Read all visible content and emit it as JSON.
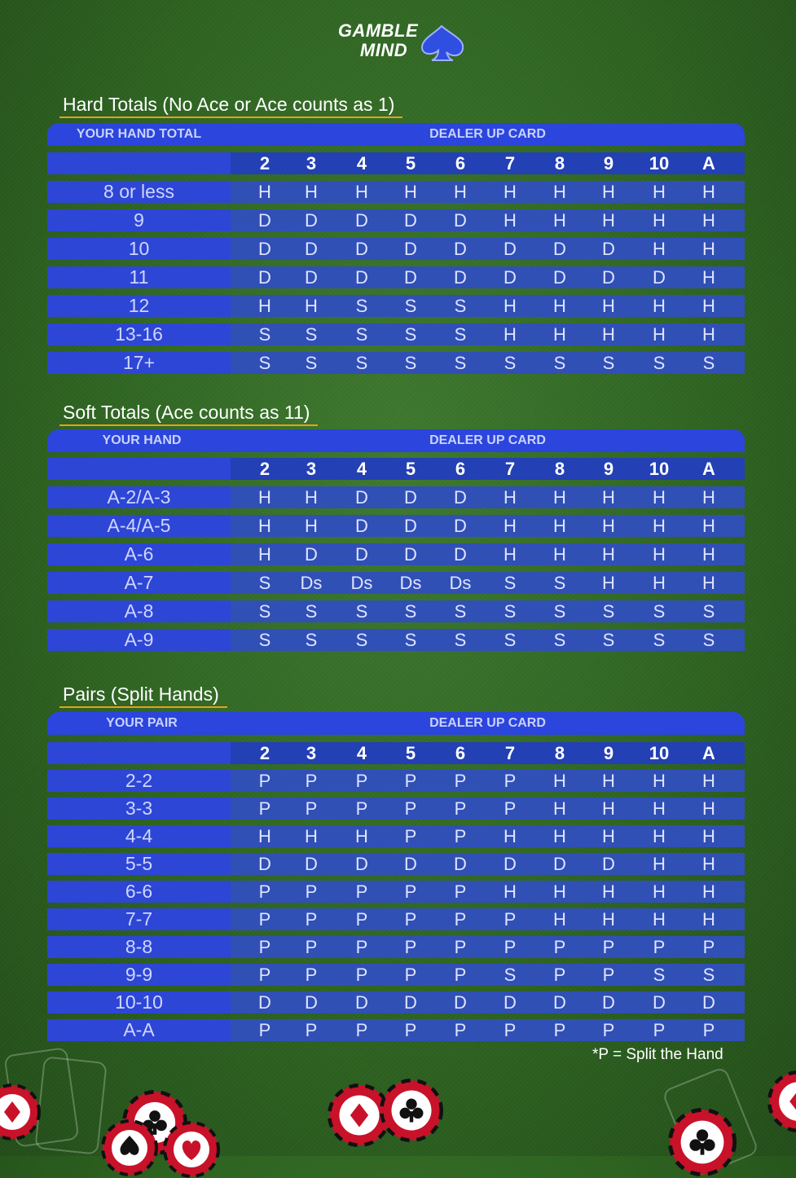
{
  "brand": {
    "line1": "GAMBLE",
    "line2": "MIND"
  },
  "dealer_cards": [
    "2",
    "3",
    "4",
    "5",
    "6",
    "7",
    "8",
    "9",
    "10",
    "A"
  ],
  "hard": {
    "title": "Hard Totals (No Ace or Ace counts as 1)",
    "left_header": "YOUR HAND TOTAL",
    "dealer_header": "DEALER UP CARD",
    "rows": [
      {
        "hand": "8 or less",
        "actions": [
          "H",
          "H",
          "H",
          "H",
          "H",
          "H",
          "H",
          "H",
          "H",
          "H"
        ]
      },
      {
        "hand": "9",
        "actions": [
          "D",
          "D",
          "D",
          "D",
          "D",
          "H",
          "H",
          "H",
          "H",
          "H"
        ]
      },
      {
        "hand": "10",
        "actions": [
          "D",
          "D",
          "D",
          "D",
          "D",
          "D",
          "D",
          "D",
          "H",
          "H"
        ]
      },
      {
        "hand": "11",
        "actions": [
          "D",
          "D",
          "D",
          "D",
          "D",
          "D",
          "D",
          "D",
          "D",
          "H"
        ]
      },
      {
        "hand": "12",
        "actions": [
          "H",
          "H",
          "S",
          "S",
          "S",
          "H",
          "H",
          "H",
          "H",
          "H"
        ]
      },
      {
        "hand": "13-16",
        "actions": [
          "S",
          "S",
          "S",
          "S",
          "S",
          "H",
          "H",
          "H",
          "H",
          "H"
        ]
      },
      {
        "hand": "17+",
        "actions": [
          "S",
          "S",
          "S",
          "S",
          "S",
          "S",
          "S",
          "S",
          "S",
          "S"
        ]
      }
    ]
  },
  "soft": {
    "title": "Soft Totals (Ace counts as 11)",
    "left_header": "YOUR HAND",
    "dealer_header": "DEALER UP CARD",
    "rows": [
      {
        "hand": "A-2/A-3",
        "actions": [
          "H",
          "H",
          "D",
          "D",
          "D",
          "H",
          "H",
          "H",
          "H",
          "H"
        ]
      },
      {
        "hand": "A-4/A-5",
        "actions": [
          "H",
          "H",
          "D",
          "D",
          "D",
          "H",
          "H",
          "H",
          "H",
          "H"
        ]
      },
      {
        "hand": "A-6",
        "actions": [
          "H",
          "D",
          "D",
          "D",
          "D",
          "H",
          "H",
          "H",
          "H",
          "H"
        ]
      },
      {
        "hand": "A-7",
        "actions": [
          "S",
          "Ds",
          "Ds",
          "Ds",
          "Ds",
          "S",
          "S",
          "H",
          "H",
          "H"
        ]
      },
      {
        "hand": "A-8",
        "actions": [
          "S",
          "S",
          "S",
          "S",
          "S",
          "S",
          "S",
          "S",
          "S",
          "S"
        ]
      },
      {
        "hand": "A-9",
        "actions": [
          "S",
          "S",
          "S",
          "S",
          "S",
          "S",
          "S",
          "S",
          "S",
          "S"
        ]
      }
    ]
  },
  "pairs": {
    "title": "Pairs (Split Hands)",
    "left_header": "YOUR PAIR",
    "dealer_header": "DEALER UP CARD",
    "rows": [
      {
        "hand": "2-2",
        "actions": [
          "P",
          "P",
          "P",
          "P",
          "P",
          "P",
          "H",
          "H",
          "H",
          "H"
        ]
      },
      {
        "hand": "3-3",
        "actions": [
          "P",
          "P",
          "P",
          "P",
          "P",
          "P",
          "H",
          "H",
          "H",
          "H"
        ]
      },
      {
        "hand": "4-4",
        "actions": [
          "H",
          "H",
          "H",
          "P",
          "P",
          "H",
          "H",
          "H",
          "H",
          "H"
        ]
      },
      {
        "hand": "5-5",
        "actions": [
          "D",
          "D",
          "D",
          "D",
          "D",
          "D",
          "D",
          "D",
          "H",
          "H"
        ]
      },
      {
        "hand": "6-6",
        "actions": [
          "P",
          "P",
          "P",
          "P",
          "P",
          "H",
          "H",
          "H",
          "H",
          "H"
        ]
      },
      {
        "hand": "7-7",
        "actions": [
          "P",
          "P",
          "P",
          "P",
          "P",
          "P",
          "H",
          "H",
          "H",
          "H"
        ]
      },
      {
        "hand": "8-8",
        "actions": [
          "P",
          "P",
          "P",
          "P",
          "P",
          "P",
          "P",
          "P",
          "P",
          "P"
        ]
      },
      {
        "hand": "9-9",
        "actions": [
          "P",
          "P",
          "P",
          "P",
          "P",
          "S",
          "P",
          "P",
          "S",
          "S"
        ]
      },
      {
        "hand": "10-10",
        "actions": [
          "D",
          "D",
          "D",
          "D",
          "D",
          "D",
          "D",
          "D",
          "D",
          "D"
        ]
      },
      {
        "hand": "A-A",
        "actions": [
          "P",
          "P",
          "P",
          "P",
          "P",
          "P",
          "P",
          "P",
          "P",
          "P"
        ]
      }
    ]
  },
  "footnote": "*P = Split the Hand"
}
